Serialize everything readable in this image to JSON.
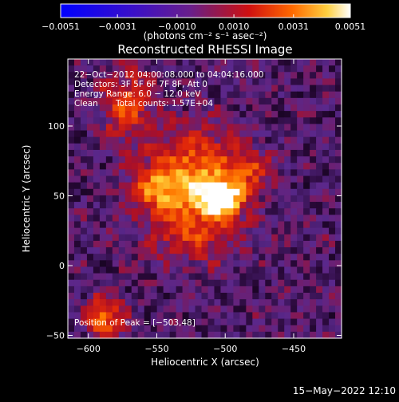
{
  "chart_data": {
    "type": "heatmap",
    "title": "Reconstructed RHESSI Image",
    "xlabel": "Heliocentric X (arcsec)",
    "ylabel": "Heliocentric Y (arcsec)",
    "xlim": [
      -615,
      -415
    ],
    "ylim": [
      -52,
      148
    ],
    "x_ticks": [
      -600,
      -550,
      -500,
      -450
    ],
    "x_tick_labels": [
      "−600",
      "−550",
      "−500",
      "−450"
    ],
    "y_ticks": [
      -50,
      0,
      50,
      100
    ],
    "y_tick_labels": [
      "−50",
      "0",
      "50",
      "100"
    ],
    "colorbar": {
      "range": [
        -0.0051,
        0.0051
      ],
      "ticks": [
        -0.0051,
        -0.0031,
        -0.001,
        0.001,
        0.0031,
        0.0051
      ],
      "tick_labels": [
        "−0.0051",
        "−0.0031",
        "−0.0010",
        "0.0010",
        "0.0031",
        "0.0051"
      ],
      "unit_label": "(photons cm⁻² s⁻¹ asec⁻²)"
    },
    "annotations": {
      "time_range": "22−Oct−2012 04:00:08.000 to 04:04:16.000",
      "detectors": "Detectors: 3F 5F 6F 7F 8F, Att 0",
      "energy": "Energy Range: 6.0 − 12.0 keV",
      "clean": "Clean",
      "total_counts": "Total counts: 1.57E+04",
      "peak": "Position of Peak = [−503,48]"
    },
    "peak": [
      -503,
      48
    ],
    "sources": [
      {
        "x": -503,
        "y": 48,
        "amp": 1.0,
        "sx": 11,
        "sy": 9
      },
      {
        "x": -522,
        "y": 65,
        "amp": 0.65,
        "sx": 22,
        "sy": 22
      },
      {
        "x": -548,
        "y": 54,
        "amp": 0.5,
        "sx": 15,
        "sy": 11
      },
      {
        "x": -572,
        "y": 115,
        "amp": 0.48,
        "sx": 13,
        "sy": 18
      },
      {
        "x": -525,
        "y": 22,
        "amp": 0.35,
        "sx": 24,
        "sy": 14
      },
      {
        "x": -588,
        "y": -38,
        "amp": 0.6,
        "sx": 9,
        "sy": 12
      },
      {
        "x": -480,
        "y": 68,
        "amp": 0.35,
        "sx": 12,
        "sy": 10
      }
    ],
    "timestamp": "15−May−2022 12:10"
  }
}
